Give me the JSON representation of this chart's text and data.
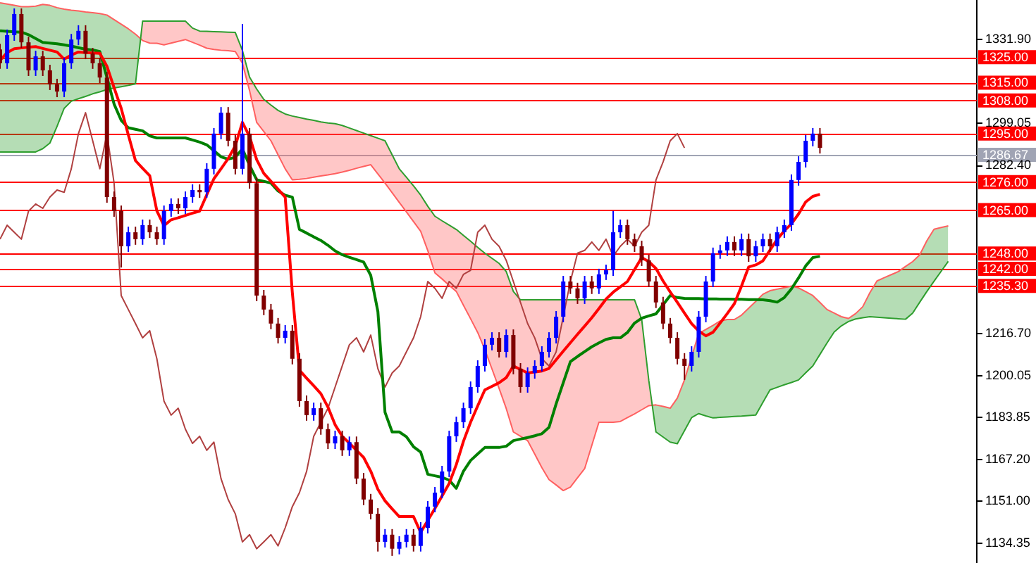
{
  "chart_data": {
    "type": "candlestick",
    "categories": [
      null,
      null,
      null,
      null,
      null,
      null,
      null,
      null,
      null,
      null,
      null,
      null,
      null,
      null,
      null,
      null,
      null,
      null,
      null,
      null,
      null,
      null,
      null,
      null,
      null,
      null,
      null,
      null,
      null,
      null,
      null,
      null,
      null,
      null,
      null,
      null,
      null,
      null,
      null,
      null,
      null,
      null,
      null,
      null,
      null,
      null,
      null,
      null,
      null,
      null,
      null,
      null,
      null,
      null,
      null,
      null,
      null,
      null,
      null,
      null,
      null,
      null,
      null,
      null,
      null,
      null,
      null,
      null,
      null,
      null,
      null,
      null,
      null,
      null,
      null,
      null,
      null,
      null,
      null,
      null,
      null,
      null,
      null,
      null,
      null,
      null,
      null,
      null,
      null,
      null,
      null,
      null,
      null,
      null,
      null,
      null,
      null,
      null,
      null,
      null,
      null,
      null,
      null,
      null,
      null,
      null,
      null,
      null,
      null,
      null,
      null,
      null,
      null,
      null,
      null,
      null,
      null,
      null,
      null,
      null,
      null,
      null,
      null,
      null,
      null,
      null,
      null,
      null,
      null,
      null,
      null,
      null,
      null,
      null,
      null,
      null,
      null,
      null
    ],
    "ohlc": [
      [
        1328.0,
        1330.2,
        1320.4,
        1322.6
      ],
      [
        1322.6,
        1335.8,
        1320.4,
        1333.6
      ],
      [
        1333.6,
        1344.1,
        1331.4,
        1341.9
      ],
      [
        1341.9,
        1344.1,
        1328.6,
        1330.8
      ],
      [
        1330.8,
        1333.0,
        1317.6,
        1319.8
      ],
      [
        1319.8,
        1327.5,
        1317.6,
        1325.3
      ],
      [
        1325.3,
        1327.5,
        1317.6,
        1319.8
      ],
      [
        1319.8,
        1322.0,
        1312.1,
        1314.3
      ],
      [
        1314.3,
        1316.5,
        1309.3,
        1311.5
      ],
      [
        1311.5,
        1324.8,
        1309.3,
        1322.6
      ],
      [
        1322.6,
        1334.1,
        1320.4,
        1331.9
      ],
      [
        1331.9,
        1337.5,
        1329.7,
        1335.3
      ],
      [
        1335.3,
        1337.5,
        1324.2,
        1326.4
      ],
      [
        1326.4,
        1328.6,
        1320.4,
        1322.6
      ],
      [
        1322.6,
        1324.8,
        1314.8,
        1317.0
      ],
      [
        1317.0,
        1319.2,
        1267.9,
        1270.1
      ],
      [
        1270.1,
        1272.3,
        1262.4,
        1264.6
      ],
      [
        1264.6,
        1266.8,
        1242.5,
        1250.8
      ],
      [
        1250.8,
        1258.5,
        1248.6,
        1256.3
      ],
      [
        1256.3,
        1258.5,
        1251.4,
        1253.6
      ],
      [
        1253.6,
        1261.3,
        1251.4,
        1259.1
      ],
      [
        1259.1,
        1261.3,
        1254.1,
        1256.3
      ],
      [
        1256.3,
        1258.5,
        1251.4,
        1253.6
      ],
      [
        1253.6,
        1266.8,
        1251.4,
        1264.6
      ],
      [
        1264.6,
        1269.6,
        1262.4,
        1267.4
      ],
      [
        1267.4,
        1269.6,
        1263.5,
        1265.7
      ],
      [
        1265.7,
        1272.3,
        1263.5,
        1270.1
      ],
      [
        1270.1,
        1275.1,
        1267.9,
        1272.9
      ],
      [
        1272.9,
        1275.1,
        1269.8,
        1272.0
      ],
      [
        1272.0,
        1283.4,
        1269.8,
        1281.2
      ],
      [
        1281.2,
        1297.2,
        1279.0,
        1295.0
      ],
      [
        1295.0,
        1305.4,
        1292.8,
        1303.2
      ],
      [
        1303.2,
        1305.4,
        1290.0,
        1292.2
      ],
      [
        1292.2,
        1294.4,
        1279.0,
        1281.2
      ],
      [
        1281.2,
        1338.0,
        1279.0,
        1295.0
      ],
      [
        1295.0,
        1297.2,
        1273.4,
        1275.6
      ],
      [
        1275.6,
        1277.8,
        1229.3,
        1231.5
      ],
      [
        1231.5,
        1233.7,
        1223.8,
        1226.0
      ],
      [
        1226.0,
        1228.2,
        1218.3,
        1220.5
      ],
      [
        1220.5,
        1222.7,
        1212.7,
        1214.9
      ],
      [
        1214.9,
        1219.9,
        1212.7,
        1217.7
      ],
      [
        1217.7,
        1219.9,
        1204.5,
        1206.7
      ],
      [
        1206.7,
        1208.9,
        1187.9,
        1190.1
      ],
      [
        1190.1,
        1192.3,
        1182.4,
        1184.6
      ],
      [
        1184.6,
        1189.5,
        1182.4,
        1187.3
      ],
      [
        1187.3,
        1189.5,
        1176.9,
        1179.1
      ],
      [
        1179.1,
        1181.3,
        1171.3,
        1173.5
      ],
      [
        1173.5,
        1178.5,
        1171.3,
        1176.3
      ],
      [
        1176.3,
        1178.5,
        1168.6,
        1170.8
      ],
      [
        1170.8,
        1176.2,
        1168.6,
        1174.0
      ],
      [
        1174.0,
        1176.2,
        1157.5,
        1159.7
      ],
      [
        1159.7,
        1161.9,
        1149.3,
        1151.5
      ],
      [
        1151.5,
        1153.7,
        1143.7,
        1145.9
      ],
      [
        1145.9,
        1148.1,
        1131.1,
        1134.9
      ],
      [
        1134.9,
        1139.9,
        1132.7,
        1137.7
      ],
      [
        1137.7,
        1139.9,
        1129.4,
        1132.2
      ],
      [
        1132.2,
        1137.1,
        1130.0,
        1134.9
      ],
      [
        1134.9,
        1139.9,
        1132.7,
        1137.7
      ],
      [
        1137.7,
        1139.9,
        1131.1,
        1133.3
      ],
      [
        1133.3,
        1142.6,
        1131.1,
        1140.4
      ],
      [
        1140.4,
        1150.9,
        1138.2,
        1148.7
      ],
      [
        1148.7,
        1156.4,
        1146.5,
        1154.2
      ],
      [
        1154.2,
        1164.7,
        1152.0,
        1162.5
      ],
      [
        1162.5,
        1178.5,
        1160.3,
        1176.3
      ],
      [
        1176.3,
        1184.0,
        1174.1,
        1181.8
      ],
      [
        1181.8,
        1189.5,
        1179.6,
        1187.3
      ],
      [
        1187.3,
        1197.8,
        1185.1,
        1195.6
      ],
      [
        1195.6,
        1206.1,
        1193.4,
        1203.9
      ],
      [
        1203.9,
        1214.4,
        1201.7,
        1212.2
      ],
      [
        1212.2,
        1217.1,
        1210.0,
        1214.9
      ],
      [
        1214.9,
        1217.1,
        1207.2,
        1209.4
      ],
      [
        1209.4,
        1218.2,
        1207.2,
        1216.0
      ],
      [
        1216.0,
        1218.2,
        1200.6,
        1202.8
      ],
      [
        1202.8,
        1205.0,
        1193.4,
        1195.6
      ],
      [
        1195.6,
        1203.3,
        1193.4,
        1201.1
      ],
      [
        1201.1,
        1206.1,
        1198.9,
        1203.9
      ],
      [
        1203.9,
        1211.6,
        1201.7,
        1209.4
      ],
      [
        1209.4,
        1217.1,
        1207.2,
        1214.9
      ],
      [
        1214.9,
        1225.4,
        1212.7,
        1223.2
      ],
      [
        1223.2,
        1239.2,
        1221.0,
        1237.0
      ],
      [
        1237.0,
        1239.2,
        1232.1,
        1234.3
      ],
      [
        1234.3,
        1236.5,
        1228.2,
        1230.4
      ],
      [
        1230.4,
        1239.2,
        1228.2,
        1237.0
      ],
      [
        1237.0,
        1239.2,
        1232.1,
        1234.3
      ],
      [
        1234.3,
        1242.0,
        1232.1,
        1239.8
      ],
      [
        1239.8,
        1243.6,
        1237.6,
        1241.4
      ],
      [
        1241.4,
        1264.6,
        1239.2,
        1256.3
      ],
      [
        1256.3,
        1261.3,
        1254.1,
        1259.1
      ],
      [
        1259.1,
        1261.3,
        1251.4,
        1253.6
      ],
      [
        1253.6,
        1255.8,
        1248.6,
        1250.8
      ],
      [
        1250.8,
        1253.0,
        1243.1,
        1245.3
      ],
      [
        1245.3,
        1247.5,
        1234.8,
        1237.0
      ],
      [
        1237.0,
        1239.2,
        1226.6,
        1228.8
      ],
      [
        1228.8,
        1231.0,
        1218.3,
        1220.5
      ],
      [
        1220.5,
        1222.7,
        1212.7,
        1214.9
      ],
      [
        1214.9,
        1217.1,
        1204.5,
        1206.7
      ],
      [
        1206.7,
        1208.9,
        1198.4,
        1203.9
      ],
      [
        1203.9,
        1211.6,
        1201.7,
        1209.4
      ],
      [
        1209.4,
        1225.4,
        1207.2,
        1223.2
      ],
      [
        1223.2,
        1239.2,
        1221.0,
        1237.0
      ],
      [
        1237.0,
        1250.3,
        1234.8,
        1248.1
      ],
      [
        1248.1,
        1251.4,
        1245.9,
        1249.2
      ],
      [
        1249.2,
        1254.7,
        1247.0,
        1252.5
      ],
      [
        1252.5,
        1254.7,
        1247.0,
        1249.2
      ],
      [
        1249.2,
        1255.8,
        1247.0,
        1253.6
      ],
      [
        1253.6,
        1255.8,
        1244.7,
        1246.9
      ],
      [
        1246.9,
        1253.0,
        1244.7,
        1250.8
      ],
      [
        1250.8,
        1255.8,
        1248.6,
        1253.6
      ],
      [
        1253.6,
        1255.8,
        1248.6,
        1250.8
      ],
      [
        1250.8,
        1258.5,
        1248.6,
        1256.3
      ],
      [
        1256.3,
        1261.3,
        1254.1,
        1259.1
      ],
      [
        1259.1,
        1279.0,
        1256.9,
        1276.8
      ],
      [
        1276.8,
        1286.1,
        1274.6,
        1283.9
      ],
      [
        1283.9,
        1294.4,
        1281.7,
        1292.2
      ],
      [
        1292.2,
        1297.2,
        1290.0,
        1295.0
      ],
      [
        1295.0,
        1297.2,
        1287.2,
        1289.4
      ],
      null,
      null,
      null,
      null,
      null,
      null,
      null,
      null,
      null,
      null,
      null,
      null,
      null,
      null,
      null,
      null,
      null,
      null,
      null,
      null,
      null,
      null
    ],
    "colors": [
      "#800000",
      "#0000ff",
      "#0000ff",
      "#800000",
      "#800000",
      "#0000ff",
      "#800000",
      "#800000",
      "#800000",
      "#0000ff",
      "#0000ff",
      "#0000ff",
      "#800000",
      "#800000",
      "#800000",
      "#800000",
      "#800000",
      "#800000",
      "#0000ff",
      "#800000",
      "#0000ff",
      "#800000",
      "#800000",
      "#0000ff",
      "#0000ff",
      "#800000",
      "#0000ff",
      "#0000ff",
      "#800000",
      "#0000ff",
      "#0000ff",
      "#0000ff",
      "#800000",
      "#800000",
      "#0000ff",
      "#800000",
      "#800000",
      "#800000",
      "#800000",
      "#800000",
      "#0000ff",
      "#800000",
      "#800000",
      "#800000",
      "#0000ff",
      "#800000",
      "#800000",
      "#0000ff",
      "#800000",
      "#0000ff",
      "#800000",
      "#800000",
      "#800000",
      "#800000",
      "#0000ff",
      "#800000",
      "#0000ff",
      "#0000ff",
      "#800000",
      "#0000ff",
      "#0000ff",
      "#0000ff",
      "#0000ff",
      "#0000ff",
      "#0000ff",
      "#0000ff",
      "#0000ff",
      "#0000ff",
      "#0000ff",
      "#0000ff",
      "#800000",
      "#0000ff",
      "#800000",
      "#800000",
      "#0000ff",
      "#0000ff",
      "#0000ff",
      "#0000ff",
      "#0000ff",
      "#0000ff",
      "#800000",
      "#800000",
      "#0000ff",
      "#800000",
      "#0000ff",
      "#0000ff",
      "#0000ff",
      "#0000ff",
      "#800000",
      "#800000",
      "#800000",
      "#800000",
      "#800000",
      "#800000",
      "#800000",
      "#800000",
      "#800000",
      "#0000ff",
      "#0000ff",
      "#0000ff",
      "#0000ff",
      "#0000ff",
      "#0000ff",
      "#800000",
      "#0000ff",
      "#800000",
      "#0000ff",
      "#0000ff",
      "#800000",
      "#0000ff",
      "#0000ff",
      "#0000ff",
      "#0000ff",
      "#0000ff",
      "#0000ff",
      "#800000",
      null,
      null,
      null,
      null,
      null,
      null,
      null,
      null,
      null,
      null,
      null,
      null,
      null,
      null,
      null,
      null,
      null,
      null,
      null,
      null,
      null,
      null
    ],
    "ylim": [
      1126.6,
      1347.4
    ],
    "yticks": [
      {
        "value": 1331.9,
        "label": "1331.90"
      },
      1299.05,
      {
        "value": 1282.4,
        "label": "1282.40"
      },
      {
        "value": 1216.7,
        "label": "1216.70"
      },
      1200.05,
      1183.85,
      {
        "value": 1167.2,
        "label": "1167.20"
      },
      {
        "value": 1151,
        "label": "1151.00"
      },
      1134.35
    ],
    "tick_labels": "y",
    "series": [
      {
        "type": "line",
        "color": "#ff6060",
        "upper": [
          1346.3,
          1345.8,
          1345.3,
          1344.8,
          1344.8,
          1345.0,
          1345.7,
          1345.3,
          1344.4,
          1343.8,
          1343.4,
          1343.1,
          1342.7,
          1342.4,
          1342.1,
          1341.5,
          1339.7,
          1337.9,
          1336.1,
          1334.0,
          1331.5,
          1330.5,
          1330.4,
          1329.8,
          1330.5,
          1331.2,
          1331.9,
          1330.8,
          1329.7,
          1328.5,
          1328.0,
          1327.7,
          1327.5,
          1327.2,
          1322.6,
          1311.9,
          1299.4,
          1295.8,
          1292.2,
          1286.7,
          1281.2,
          1276.9,
          1277.1,
          1277.4,
          1277.9,
          1278.4,
          1278.8,
          1279.3,
          1279.9,
          1280.6,
          1281.4,
          1282.1,
          1282.8,
          1279.2,
          1275.6,
          1271.8,
          1268.0,
          1264.3,
          1260.5,
          1256.7,
          1249.1,
          1240.4,
          1238.0,
          1235.5,
          1233.1,
          1227.7,
          1222.4,
          1217.0,
          1210.3,
          1202.7,
          1195.1,
          1187.2,
          1178.0,
          1176.3,
          1174.6,
          1169.3,
          1164.0,
          1159.3,
          1157.2,
          1155.0,
          1156.4,
          1160.0,
          1163.6,
          1172.7,
          1181.8,
          1181.8,
          1181.8,
          1182.1,
          1183.6,
          1185.1,
          1186.7,
          1188.3,
          1188.6,
          1188.0,
          1187.3,
          1191.3,
          1198.4,
          1207.5,
          1216.6,
          1218.2,
          1219.8,
          1221.5,
          1222.1,
          1222.1,
          1223.8,
          1226.5,
          1229.2,
          1232.0,
          1233.4,
          1234.0,
          1234.6,
          1235.2,
          1234.5,
          1233.0,
          1231.5,
          1228.8,
          1226.0,
          1224.6,
          1223.2,
          1222.5,
          1224.4,
          1227.1,
          1232.6,
          1237.2,
          1238.5,
          1239.7,
          1240.9,
          1242.9,
          1244.8,
          1247.5,
          1253.0,
          1257.5,
          1258.2,
          1258.8,
          null,
          null,
          null,
          null
        ],
        "lower": [
          1287.8,
          1287.8,
          1287.8,
          1287.8,
          1287.8,
          1287.8,
          1289.1,
          1291.3,
          1297.8,
          1304.9,
          1307.7,
          1308.7,
          1309.6,
          1310.6,
          1311.4,
          1312.3,
          1312.9,
          1313.4,
          1313.9,
          1314.5,
          1339.1,
          1339.1,
          1339.1,
          1339.1,
          1339.1,
          1339.1,
          1339.1,
          1336.4,
          1335.2,
          1335.1,
          1335.0,
          1334.9,
          1334.8,
          1334.7,
          1327.6,
          1317.2,
          1312.5,
          1308.4,
          1306.2,
          1304.1,
          1302.7,
          1301.9,
          1301.3,
          1300.7,
          1300.2,
          1299.6,
          1299.2,
          1298.9,
          1298.2,
          1297.2,
          1296.2,
          1295.2,
          1294.2,
          1293.2,
          1292.2,
          1286.7,
          1281.2,
          1277.9,
          1274.5,
          1270.9,
          1266.5,
          1262.6,
          1260.8,
          1259.1,
          1257.4,
          1255.1,
          1252.8,
          1250.4,
          1248.1,
          1246.1,
          1244.1,
          1240.9,
          1233.1,
          1229.8,
          1229.8,
          1229.8,
          1229.8,
          1229.8,
          1229.8,
          1229.8,
          1229.8,
          1229.8,
          1229.8,
          1229.8,
          1229.8,
          1229.8,
          1229.8,
          1229.8,
          1229.8,
          1229.8,
          1222.1,
          1198.1,
          1178.0,
          1176.0,
          1174.0,
          1173.4,
          1178.5,
          1183.6,
          1185.2,
          1184.3,
          1183.5,
          1183.7,
          1183.9,
          1184.1,
          1184.2,
          1184.4,
          1184.6,
          1189.6,
          1194.5,
          1195.5,
          1196.5,
          1197.4,
          1198.4,
          1201.2,
          1203.9,
          1208.4,
          1212.9,
          1217.2,
          1219.6,
          1221.3,
          1222.3,
          1222.8,
          1223.2,
          1223.0,
          1222.8,
          1222.6,
          1222.4,
          1222.2,
          1224.6,
          1228.9,
          1233.1,
          1237.1,
          1241.0,
          1244.9,
          null,
          null,
          null,
          null
        ],
        "values": [
          1346.3,
          1345.8,
          1345.3,
          1344.8,
          1344.8,
          1345.0,
          1345.7,
          1345.3,
          1344.4,
          1343.8,
          1343.4,
          1343.1,
          1342.7,
          1342.4,
          1342.1,
          1341.5,
          1339.7,
          1337.9,
          1336.1,
          1334.0,
          1331.5,
          1330.5,
          1330.4,
          1329.8,
          1330.5,
          1331.2,
          1331.9,
          1330.8,
          1329.7,
          1328.5,
          1328.0,
          1327.7,
          1327.5,
          1327.2,
          1322.6,
          1311.9,
          1299.4,
          1295.8,
          1292.2,
          1286.7,
          1281.2,
          1276.9,
          1277.1,
          1277.4,
          1277.9,
          1278.4,
          1278.8,
          1279.3,
          1279.9,
          1280.6,
          1281.4,
          1282.1,
          1282.8,
          1279.2,
          1275.6,
          1271.8,
          1268.0,
          1264.3,
          1260.5,
          1256.7,
          1249.1,
          1240.4,
          1238.0,
          1235.5,
          1233.1,
          1227.7,
          1222.4,
          1217.0,
          1210.3,
          1202.7,
          1195.1,
          1187.2,
          1178.0,
          1176.3,
          1174.6,
          1169.3,
          1164.0,
          1159.3,
          1157.2,
          1155.0,
          1156.4,
          1160.0,
          1163.6,
          1172.7,
          1181.8,
          1181.8,
          1181.8,
          1182.1,
          1183.6,
          1185.1,
          1186.7,
          1188.3,
          1188.6,
          1188.0,
          1187.3,
          1191.3,
          1198.4,
          1207.5,
          1216.6,
          1218.2,
          1219.8,
          1221.5,
          1222.1,
          1222.1,
          1223.8,
          1226.5,
          1229.2,
          1232.0,
          1233.4,
          1234.0,
          1234.6,
          1235.2,
          1234.5,
          1233.0,
          1231.5,
          1228.8,
          1226.0,
          1224.6,
          1223.2,
          1222.5,
          1224.4,
          1227.1,
          1232.6,
          1237.2,
          1238.5,
          1239.7,
          1240.9,
          1242.9,
          1244.8,
          1247.5,
          1253.0,
          1257.5,
          1258.2,
          1258.8,
          null,
          null,
          null,
          null
        ]
      },
      {
        "type": "line",
        "color": "#2e9e2e",
        "values": [
          1287.8,
          1287.8,
          1287.8,
          1287.8,
          1287.8,
          1287.8,
          1289.1,
          1291.3,
          1297.8,
          1304.9,
          1307.7,
          1308.7,
          1309.6,
          1310.6,
          1311.4,
          1312.3,
          1312.9,
          1313.4,
          1313.9,
          1314.5,
          1339.1,
          1339.1,
          1339.1,
          1339.1,
          1339.1,
          1339.1,
          1339.1,
          1336.4,
          1335.2,
          1335.1,
          1335.0,
          1334.9,
          1334.8,
          1334.7,
          1327.6,
          1317.2,
          1312.5,
          1308.4,
          1306.2,
          1304.1,
          1302.7,
          1301.9,
          1301.3,
          1300.7,
          1300.2,
          1299.6,
          1299.2,
          1298.9,
          1298.2,
          1297.2,
          1296.2,
          1295.2,
          1294.2,
          1293.2,
          1292.2,
          1286.7,
          1281.2,
          1277.9,
          1274.5,
          1270.9,
          1266.5,
          1262.6,
          1260.8,
          1259.1,
          1257.4,
          1255.1,
          1252.8,
          1250.4,
          1248.1,
          1246.1,
          1244.1,
          1240.9,
          1233.1,
          1229.8,
          1229.8,
          1229.8,
          1229.8,
          1229.8,
          1229.8,
          1229.8,
          1229.8,
          1229.8,
          1229.8,
          1229.8,
          1229.8,
          1229.8,
          1229.8,
          1229.8,
          1229.8,
          1229.8,
          1222.1,
          1198.1,
          1178.0,
          1176.0,
          1174.0,
          1173.4,
          1178.5,
          1183.6,
          1185.2,
          1184.3,
          1183.5,
          1183.7,
          1183.9,
          1184.1,
          1184.2,
          1184.4,
          1184.6,
          1189.6,
          1194.5,
          1195.5,
          1196.5,
          1197.4,
          1198.4,
          1201.2,
          1203.9,
          1208.4,
          1212.9,
          1217.2,
          1219.6,
          1221.3,
          1222.3,
          1222.8,
          1223.2,
          1223.0,
          1222.8,
          1222.6,
          1222.4,
          1222.2,
          1224.6,
          1228.9,
          1233.1,
          1237.1,
          1241.0,
          1244.9,
          null,
          null,
          null,
          null
        ]
      },
      {
        "type": "line",
        "color": "#b04040",
        "values": [
          1253.6,
          1259.1,
          1256.3,
          1253.6,
          1264.6,
          1267.4,
          1265.7,
          1270.1,
          1272.9,
          1272.0,
          1281.2,
          1295.0,
          1303.2,
          1292.2,
          1281.2,
          1295.0,
          1275.6,
          1231.5,
          1226.0,
          1220.5,
          1214.9,
          1217.7,
          1206.7,
          1190.1,
          1184.6,
          1187.3,
          1179.1,
          1173.5,
          1176.3,
          1170.8,
          1174.0,
          1159.7,
          1151.5,
          1145.9,
          1134.9,
          1137.7,
          1132.2,
          1134.9,
          1137.7,
          1133.3,
          1140.4,
          1148.7,
          1154.2,
          1162.5,
          1176.3,
          1181.8,
          1187.3,
          1195.6,
          1203.9,
          1212.2,
          1214.9,
          1209.4,
          1216.0,
          1202.8,
          1195.6,
          1201.1,
          1203.9,
          1209.4,
          1214.9,
          1223.2,
          1237.0,
          1234.3,
          1230.4,
          1237.0,
          1234.3,
          1239.8,
          1241.4,
          1256.3,
          1259.1,
          1253.6,
          1250.8,
          1245.3,
          1237.0,
          1228.8,
          1220.5,
          1214.9,
          1206.7,
          1203.9,
          1209.4,
          1223.2,
          1237.0,
          1248.1,
          1249.2,
          1252.5,
          1249.2,
          1253.6,
          1246.9,
          1250.8,
          1253.6,
          1250.8,
          1256.3,
          1259.1,
          1276.8,
          1283.9,
          1292.2,
          1295.0,
          1289.4,
          null,
          null,
          null,
          null,
          null,
          null,
          null,
          null,
          null,
          null,
          null,
          null,
          null,
          null,
          null,
          null,
          null,
          null,
          null,
          null,
          null,
          null,
          null,
          null,
          null,
          null,
          null,
          null,
          null,
          null,
          null,
          null,
          null,
          null,
          null,
          null,
          null,
          null,
          null,
          null,
          null
        ]
      },
      {
        "type": "line",
        "color": "#008000",
        "values": [
          1335.3,
          1335.1,
          1334.9,
          1334.8,
          1333.8,
          1332.3,
          1330.8,
          1330.5,
          1330.2,
          1329.8,
          1329.3,
          1328.7,
          1328.1,
          1327.8,
          1327.2,
          1317.0,
          1306.6,
          1300.2,
          1297.3,
          1296.7,
          1296.1,
          1294.1,
          1293.3,
          1293.3,
          1293.3,
          1293.3,
          1293.3,
          1292.5,
          1291.7,
          1290.6,
          1288.3,
          1285.9,
          1285.0,
          1285.7,
          1289.0,
          1282.6,
          1276.9,
          1276.3,
          1275.6,
          1272.5,
          1270.8,
          1270.1,
          1257.4,
          1256.0,
          1254.5,
          1253.1,
          1251.2,
          1249.0,
          1247.5,
          1246.5,
          1245.6,
          1244.6,
          1239.4,
          1225.2,
          1185.7,
          1178.0,
          1178.0,
          1176.1,
          1172.2,
          1170.1,
          1161.4,
          1160.8,
          1160.2,
          1159.1,
          1155.9,
          1162.6,
          1166.8,
          1169.4,
          1171.9,
          1171.9,
          1171.9,
          1172.4,
          1174.6,
          1175.2,
          1175.8,
          1176.5,
          1177.3,
          1179.8,
          1189.0,
          1197.3,
          1205.6,
          1207.6,
          1209.5,
          1211.4,
          1212.9,
          1214.3,
          1214.9,
          1214.9,
          1217.0,
          1220.7,
          1222.6,
          1223.5,
          1224.3,
          1227.9,
          1231.5,
          1230.7,
          1230.4,
          1230.3,
          1230.3,
          1230.2,
          1230.2,
          1230.1,
          1230.1,
          1230.0,
          1230.0,
          1229.9,
          1229.9,
          1229.8,
          1229.5,
          1228.9,
          1230.7,
          1234.1,
          1238.4,
          1243.1,
          1246.4,
          1246.9,
          null,
          null,
          null,
          null,
          null,
          null,
          null,
          null,
          null,
          null,
          null,
          null,
          null,
          null,
          null,
          null,
          null,
          null,
          null,
          null,
          null,
          null
        ]
      },
      {
        "type": "line",
        "color": "#ff0000",
        "values": [
          1323.7,
          1326.8,
          1328.3,
          1328.6,
          1328.9,
          1329.1,
          1328.4,
          1327.7,
          1327.0,
          1324.2,
          1325.8,
          1327.0,
          1326.8,
          1326.6,
          1326.5,
          1321.4,
          1313.0,
          1304.9,
          1294.5,
          1284.4,
          1281.4,
          1278.5,
          1264.7,
          1258.9,
          1261.2,
          1262.0,
          1262.9,
          1263.8,
          1264.6,
          1271.0,
          1277.3,
          1281.2,
          1285.2,
          1290.2,
          1299.4,
          1293.9,
          1284.8,
          1279.4,
          1276.3,
          1273.2,
          1270.1,
          1232.7,
          1202.2,
          1199.1,
          1196.1,
          1193.0,
          1187.7,
          1180.8,
          1176.3,
          1173.6,
          1170.8,
          1168.0,
          1162.6,
          1155.5,
          1151.0,
          1147.8,
          1144.8,
          1144.8,
          1144.8,
          1138.6,
          1143.3,
          1148.0,
          1152.9,
          1157.8,
          1165.2,
          1174.3,
          1181.8,
          1188.2,
          1194.5,
          1195.9,
          1197.3,
          1199.3,
          1203.9,
          1202.5,
          1201.1,
          1201.5,
          1201.9,
          1202.9,
          1206.3,
          1209.7,
          1213.0,
          1216.3,
          1219.5,
          1222.8,
          1226.4,
          1230.1,
          1232.8,
          1234.9,
          1237.0,
          1241.7,
          1246.4,
          1244.8,
          1242.1,
          1237.2,
          1232.9,
          1228.8,
          1224.6,
          1220.5,
          1217.6,
          1215.7,
          1217.1,
          1220.7,
          1224.4,
          1228.3,
          1235.2,
          1242.7,
          1243.5,
          1245.1,
          1249.3,
          1253.5,
          1256.9,
          1259.6,
          1263.5,
          1268.2,
          1270.4,
          1271.2,
          null,
          null,
          null,
          null,
          null,
          null,
          null,
          null,
          null,
          null,
          null,
          null,
          null,
          null,
          null,
          null,
          null,
          null,
          null,
          null,
          null,
          null
        ]
      }
    ],
    "ref_lines": [
      {
        "axis": "y",
        "value": 1325,
        "label": "1325.00",
        "color": "#ff0000"
      },
      {
        "axis": "y",
        "value": 1315,
        "label": "1315.00",
        "color": "#ff0000"
      },
      {
        "axis": "y",
        "value": 1308,
        "label": "1308.00",
        "color": "#ff0000"
      },
      {
        "axis": "y",
        "value": 1295,
        "label": "1295.00",
        "color": "#ff0000"
      },
      {
        "axis": "y",
        "value": 1286.67,
        "label": "1286.67",
        "color": "#a0a4b4"
      },
      {
        "axis": "y",
        "value": 1276,
        "label": "1276.00",
        "color": "#ff0000"
      },
      {
        "axis": "y",
        "value": 1265,
        "label": "1265.00",
        "color": "#ff0000"
      },
      {
        "axis": "y",
        "value": 1248,
        "label": "1248.00",
        "color": "#ff0000"
      },
      {
        "axis": "y",
        "value": 1242,
        "label": "1242.00",
        "color": "#ff0000"
      },
      {
        "axis": "y",
        "value": 1235.3,
        "label": "1235.30",
        "color": "#ff0000"
      }
    ]
  }
}
